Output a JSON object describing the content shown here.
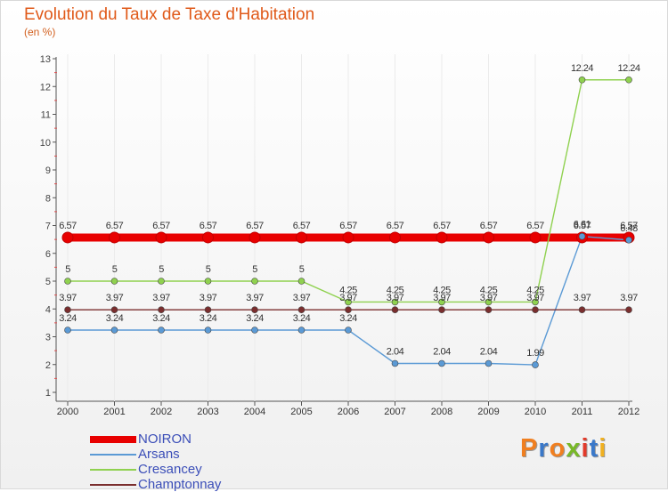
{
  "title": "Evolution du Taux de Taxe d'Habitation",
  "unit": "(en %)",
  "logo": {
    "text": "Proxiti",
    "colors": [
      "#f07f20",
      "#3a78c9",
      "#f07f20",
      "#78b828",
      "#e23a2a",
      "#3a78c9",
      "#f0b020"
    ]
  },
  "chart_data": {
    "type": "line",
    "title": "Evolution du Taux de Taxe d'Habitation",
    "ylabel": "(en %)",
    "xlabel": "",
    "x": [
      "2000",
      "2001",
      "2002",
      "2003",
      "2004",
      "2005",
      "2006",
      "2007",
      "2008",
      "2009",
      "2010",
      "2011",
      "2012"
    ],
    "ylim": [
      1,
      13
    ],
    "yticks": [
      1,
      2,
      3,
      4,
      5,
      6,
      7,
      8,
      9,
      10,
      11,
      12,
      13
    ],
    "legend_position": "bottom-left",
    "series": [
      {
        "name": "NOIRON",
        "color": "#e80000",
        "thick": true,
        "values": [
          6.57,
          6.57,
          6.57,
          6.57,
          6.57,
          6.57,
          6.57,
          6.57,
          6.57,
          6.57,
          6.57,
          6.57,
          6.57
        ],
        "labels": [
          "6.57",
          "6.57",
          "6.57",
          "6.57",
          "6.57",
          "6.57",
          "6.57",
          "6.57",
          "6.57",
          "6.57",
          "6.57",
          "6.57",
          "6.57"
        ]
      },
      {
        "name": "Arsans",
        "color": "#5b9ad5",
        "thick": false,
        "values": [
          3.24,
          3.24,
          3.24,
          3.24,
          3.24,
          3.24,
          3.24,
          2.04,
          2.04,
          2.04,
          1.99,
          6.61,
          6.48
        ],
        "labels": [
          "3.24",
          "3.24",
          "3.24",
          "3.24",
          "3.24",
          "3.24",
          "3.24",
          "2.04",
          "2.04",
          "2.04",
          "1.99",
          "6.61",
          "6.48"
        ]
      },
      {
        "name": "Cresancey",
        "color": "#8fd14f",
        "thick": false,
        "values": [
          5,
          5,
          5,
          5,
          5,
          5,
          4.25,
          4.25,
          4.25,
          4.25,
          4.25,
          12.24,
          12.24
        ],
        "labels": [
          "5",
          "5",
          "5",
          "5",
          "5",
          "5",
          "4.25",
          "4.25",
          "4.25",
          "4.25",
          "4.25",
          "12.24",
          "12.24"
        ]
      },
      {
        "name": "Champtonnay",
        "color": "#7a2e2e",
        "thick": false,
        "values": [
          3.97,
          3.97,
          3.97,
          3.97,
          3.97,
          3.97,
          3.97,
          3.97,
          3.97,
          3.97,
          3.97,
          3.97,
          3.97
        ],
        "labels": [
          "3.97",
          "3.97",
          "3.97",
          "3.97",
          "3.97",
          "3.97",
          "3.97",
          "3.97",
          "3.97",
          "3.97",
          "3.97",
          "3.97",
          "3.97"
        ]
      }
    ]
  }
}
